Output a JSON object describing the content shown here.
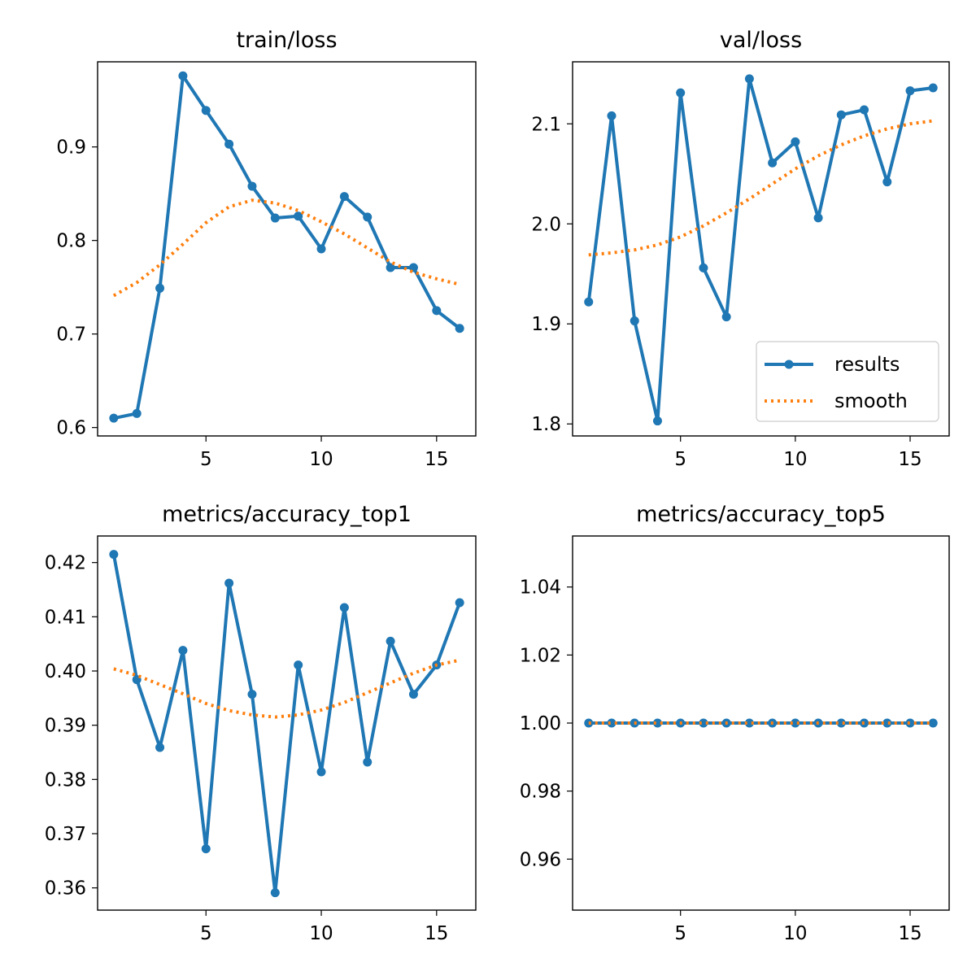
{
  "chart_data": [
    {
      "type": "line",
      "title": "train/loss",
      "xlabel": "",
      "ylabel": "",
      "xlim": [
        0.3,
        16.7
      ],
      "ylim": [
        0.591,
        0.991
      ],
      "xticks": [
        5,
        10,
        15
      ],
      "yticks": [
        0.6,
        0.7,
        0.8,
        0.9
      ],
      "ytick_labels": [
        "0.6",
        "0.7",
        "0.8",
        "0.9"
      ],
      "x": [
        1,
        2,
        3,
        4,
        5,
        6,
        7,
        8,
        9,
        10,
        11,
        12,
        13,
        14,
        15,
        16
      ],
      "series": [
        {
          "name": "results",
          "color": "#1f77b4",
          "style": "solid-with-dots",
          "values": [
            0.61,
            0.615,
            0.749,
            0.976,
            0.939,
            0.903,
            0.858,
            0.824,
            0.826,
            0.791,
            0.847,
            0.825,
            0.771,
            0.771,
            0.725,
            0.706
          ]
        },
        {
          "name": "smooth",
          "color": "#ff7f0e",
          "style": "dotted",
          "values": [
            0.741,
            0.755,
            0.774,
            0.796,
            0.819,
            0.836,
            0.843,
            0.84,
            0.832,
            0.82,
            0.807,
            0.792,
            0.777,
            0.766,
            0.759,
            0.753
          ]
        }
      ],
      "legend": null
    },
    {
      "type": "line",
      "title": "val/loss",
      "xlabel": "",
      "ylabel": "",
      "xlim": [
        0.3,
        16.7
      ],
      "ylim": [
        1.788,
        2.162
      ],
      "xticks": [
        5,
        10,
        15
      ],
      "yticks": [
        1.8,
        1.9,
        2.0,
        2.1
      ],
      "ytick_labels": [
        "1.8",
        "1.9",
        "2.0",
        "2.1"
      ],
      "x": [
        1,
        2,
        3,
        4,
        5,
        6,
        7,
        8,
        9,
        10,
        11,
        12,
        13,
        14,
        15,
        16
      ],
      "series": [
        {
          "name": "results",
          "color": "#1f77b4",
          "style": "solid-with-dots",
          "values": [
            1.922,
            2.108,
            1.903,
            1.803,
            2.131,
            1.956,
            1.907,
            2.145,
            2.061,
            2.082,
            2.006,
            2.109,
            2.114,
            2.042,
            2.133,
            2.136
          ]
        },
        {
          "name": "smooth",
          "color": "#ff7f0e",
          "style": "dotted",
          "values": [
            1.969,
            1.971,
            1.974,
            1.979,
            1.987,
            1.998,
            2.011,
            2.025,
            2.04,
            2.055,
            2.068,
            2.079,
            2.088,
            2.095,
            2.1,
            2.103
          ]
        }
      ],
      "legend": {
        "position": "lower right",
        "entries": [
          "results",
          "smooth"
        ]
      }
    },
    {
      "type": "line",
      "title": "metrics/accuracy_top1",
      "xlabel": "",
      "ylabel": "",
      "xlim": [
        0.3,
        16.7
      ],
      "ylim": [
        0.3559,
        0.4249
      ],
      "xticks": [
        5,
        10,
        15
      ],
      "yticks": [
        0.36,
        0.37,
        0.38,
        0.39,
        0.4,
        0.41,
        0.42
      ],
      "ytick_labels": [
        "0.36",
        "0.37",
        "0.38",
        "0.39",
        "0.40",
        "0.41",
        "0.42"
      ],
      "x": [
        1,
        2,
        3,
        4,
        5,
        6,
        7,
        8,
        9,
        10,
        11,
        12,
        13,
        14,
        15,
        16
      ],
      "series": [
        {
          "name": "results",
          "color": "#1f77b4",
          "style": "solid-with-dots",
          "values": [
            0.4215,
            0.3984,
            0.3859,
            0.4038,
            0.3672,
            0.4162,
            0.3957,
            0.3591,
            0.4011,
            0.3814,
            0.4117,
            0.3832,
            0.4055,
            0.3957,
            0.4011,
            0.4126
          ]
        },
        {
          "name": "smooth",
          "color": "#ff7f0e",
          "style": "dotted",
          "values": [
            0.4004,
            0.3992,
            0.3975,
            0.3958,
            0.394,
            0.3927,
            0.3919,
            0.3915,
            0.3919,
            0.3928,
            0.3942,
            0.396,
            0.3978,
            0.3996,
            0.4011,
            0.402
          ]
        }
      ],
      "legend": null
    },
    {
      "type": "line",
      "title": "metrics/accuracy_top5",
      "xlabel": "",
      "ylabel": "",
      "xlim": [
        0.3,
        16.7
      ],
      "ylim": [
        0.945,
        1.055
      ],
      "xticks": [
        5,
        10,
        15
      ],
      "yticks": [
        0.96,
        0.98,
        1.0,
        1.02,
        1.04
      ],
      "ytick_labels": [
        "0.96",
        "0.98",
        "1.00",
        "1.02",
        "1.04"
      ],
      "x": [
        1,
        2,
        3,
        4,
        5,
        6,
        7,
        8,
        9,
        10,
        11,
        12,
        13,
        14,
        15,
        16
      ],
      "series": [
        {
          "name": "results",
          "color": "#1f77b4",
          "style": "solid-with-dots",
          "values": [
            1.0,
            1.0,
            1.0,
            1.0,
            1.0,
            1.0,
            1.0,
            1.0,
            1.0,
            1.0,
            1.0,
            1.0,
            1.0,
            1.0,
            1.0,
            1.0
          ]
        },
        {
          "name": "smooth",
          "color": "#ff7f0e",
          "style": "dotted",
          "values": [
            1.0,
            1.0,
            1.0,
            1.0,
            1.0,
            1.0,
            1.0,
            1.0,
            1.0,
            1.0,
            1.0,
            1.0,
            1.0,
            1.0,
            1.0,
            1.0
          ]
        }
      ],
      "legend": null
    }
  ]
}
